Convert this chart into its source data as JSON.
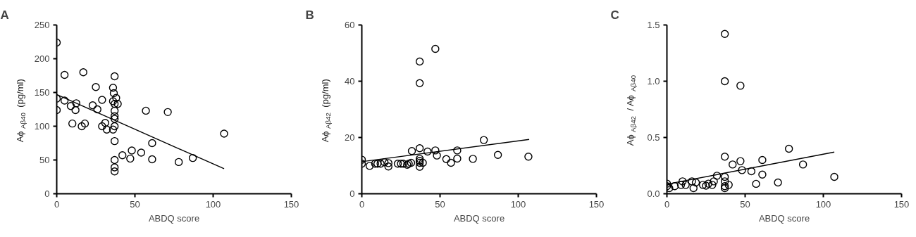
{
  "chart_data": [
    {
      "type": "scatter",
      "title": "A",
      "xlabel": "ABDQ score",
      "ylabel": "Aϕ$_{Aβ40}$ (pg/ml)",
      "xlim": [
        0,
        150
      ],
      "ylim": [
        0,
        250
      ],
      "xticks": [
        0,
        50,
        100,
        150
      ],
      "yticks": [
        0,
        50,
        100,
        150,
        200,
        250
      ],
      "grid": false,
      "marker": "circle",
      "series": [
        {
          "color": "#000000",
          "x": [
            0,
            0,
            0,
            5,
            5,
            9,
            12,
            12.5,
            10,
            17,
            16,
            18,
            23,
            25,
            26,
            29,
            29,
            31,
            32,
            36,
            37,
            36,
            36.5,
            38,
            37,
            39,
            37,
            37,
            37,
            37,
            36,
            37,
            37,
            37,
            37,
            42,
            47,
            48,
            54,
            57,
            61,
            61,
            71,
            78,
            87,
            107
          ],
          "values": [
            224,
            141,
            124,
            176,
            138,
            130,
            124,
            134,
            104,
            180,
            100,
            104,
            131,
            158,
            125,
            139,
            100,
            105,
            95,
            157,
            174,
            137,
            149,
            142,
            133,
            133,
            123,
            115,
            111,
            100,
            95,
            78,
            50,
            39,
            33,
            57,
            52,
            64,
            61,
            123,
            75,
            51,
            121,
            47,
            53,
            89
          ]
        },
        {
          "type": "line",
          "marker": "none",
          "color": "#000000",
          "x": [
            0,
            107
          ],
          "values": [
            147,
            37
          ]
        }
      ]
    },
    {
      "type": "scatter",
      "title": "B",
      "xlabel": "ABDQ score",
      "ylabel": "Aϕ$_{Aβ42}$ (pg/ml)",
      "xlim": [
        0,
        150
      ],
      "ylim": [
        0,
        60
      ],
      "xticks": [
        0,
        50,
        100,
        150
      ],
      "yticks": [
        0,
        20,
        40,
        60
      ],
      "grid": false,
      "marker": "circle",
      "series": [
        {
          "color": "#000000",
          "x": [
            0,
            0,
            5,
            8.5,
            10,
            12,
            14.5,
            17,
            17,
            23,
            25,
            26.5,
            29,
            30,
            31.5,
            32,
            37,
            37,
            37,
            37,
            37,
            37,
            37,
            39,
            42,
            47,
            47,
            48,
            54,
            57,
            61,
            61,
            71,
            78,
            87,
            106.5
          ],
          "values": [
            12.1,
            10.7,
            9.9,
            10.7,
            10.7,
            10.7,
            11.2,
            10.9,
            9.7,
            10.7,
            10.7,
            10.7,
            10.3,
            10.7,
            11,
            15.2,
            16.2,
            47,
            39.3,
            12.4,
            11.7,
            11,
            9.6,
            11,
            15,
            15.4,
            51.5,
            13.6,
            12.3,
            11,
            15.4,
            12.5,
            12.4,
            19.1,
            13.8,
            13.2
          ]
        },
        {
          "type": "line",
          "marker": "none",
          "color": "#000000",
          "x": [
            0,
            107
          ],
          "values": [
            11.4,
            19.3
          ]
        }
      ]
    },
    {
      "type": "scatter",
      "title": "C",
      "xlabel": "ABDQ score",
      "ylabel": "Aϕ$_{Aβ42}$ / Aϕ$_{Aβ40}$",
      "xlim": [
        0,
        150
      ],
      "ylim": [
        0,
        1.5
      ],
      "xticks": [
        0,
        50,
        100,
        150
      ],
      "yticks": [
        {
          "value": 0,
          "label": "0.0"
        },
        0.5,
        {
          "value": 1,
          "label": "1.0"
        },
        1.5
      ],
      "grid": false,
      "marker": "circle",
      "series": [
        {
          "color": "#000000",
          "x": [
            0,
            0,
            1.5,
            5,
            9,
            10,
            12,
            16,
            17,
            18.5,
            23,
            25,
            26.5,
            29,
            30,
            32,
            37,
            37,
            47,
            37,
            37,
            37,
            37,
            37,
            39.5,
            42,
            47,
            48,
            54,
            57,
            61,
            61,
            71,
            78,
            87,
            107
          ],
          "values": [
            0.09,
            0.067,
            0.05,
            0.067,
            0.079,
            0.11,
            0.079,
            0.11,
            0.05,
            0.1,
            0.079,
            0.072,
            0.09,
            0.079,
            0.11,
            0.16,
            1.42,
            1.0,
            0.96,
            0.33,
            0.15,
            0.11,
            0.067,
            0.05,
            0.079,
            0.26,
            0.29,
            0.21,
            0.2,
            0.088,
            0.3,
            0.17,
            0.1,
            0.4,
            0.26,
            0.15
          ]
        },
        {
          "type": "line",
          "marker": "none",
          "color": "#000000",
          "x": [
            0,
            107
          ],
          "values": [
            0.085,
            0.37
          ]
        }
      ]
    }
  ]
}
